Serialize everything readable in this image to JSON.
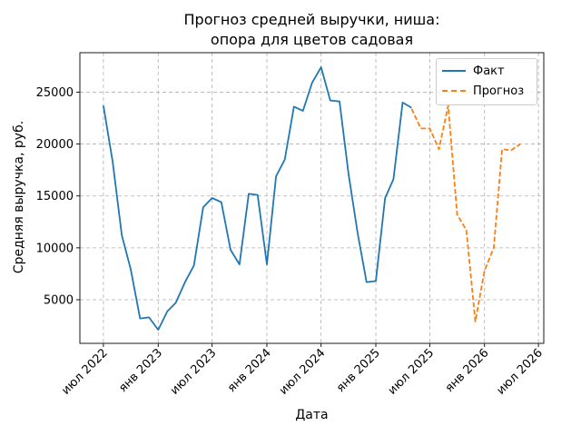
{
  "chart_data": {
    "type": "line",
    "title": "Прогноз средней выручки, ниша:",
    "subtitle": "опора для цветов садовая",
    "xlabel": "Дата",
    "ylabel": "Средняя выручка, руб.",
    "xlim": [
      "2022-04-13",
      "2026-07-19"
    ],
    "ylim": [
      800,
      28800
    ],
    "x_ticks": [
      {
        "date": "2022-07-01",
        "label": "июл 2022"
      },
      {
        "date": "2023-01-01",
        "label": "янв 2023"
      },
      {
        "date": "2023-07-01",
        "label": "июл 2023"
      },
      {
        "date": "2024-01-01",
        "label": "янв 2024"
      },
      {
        "date": "2024-07-01",
        "label": "июл 2024"
      },
      {
        "date": "2025-01-01",
        "label": "янв 2025"
      },
      {
        "date": "2025-07-01",
        "label": "июл 2025"
      },
      {
        "date": "2026-01-01",
        "label": "янв 2026"
      },
      {
        "date": "2026-07-01",
        "label": "июл 2026"
      }
    ],
    "y_ticks": [
      5000,
      10000,
      15000,
      20000,
      25000
    ],
    "y_tick_labels": [
      "5000",
      "10000",
      "15000",
      "20000",
      "25000"
    ],
    "grid": true,
    "legend_position": "upper-right",
    "series": [
      {
        "name": "Факт",
        "color": "#1f77b4",
        "style": "solid",
        "points": [
          [
            "2022-07-01",
            23700
          ],
          [
            "2022-08-01",
            18300
          ],
          [
            "2022-09-01",
            11200
          ],
          [
            "2022-10-01",
            7900
          ],
          [
            "2022-11-01",
            3200
          ],
          [
            "2022-12-01",
            3300
          ],
          [
            "2023-01-01",
            2100
          ],
          [
            "2023-02-01",
            3900
          ],
          [
            "2023-03-01",
            4700
          ],
          [
            "2023-04-01",
            6700
          ],
          [
            "2023-05-01",
            8300
          ],
          [
            "2023-06-01",
            13900
          ],
          [
            "2023-07-01",
            14800
          ],
          [
            "2023-08-01",
            14400
          ],
          [
            "2023-09-01",
            9800
          ],
          [
            "2023-10-01",
            8400
          ],
          [
            "2023-11-01",
            15200
          ],
          [
            "2023-12-01",
            15100
          ],
          [
            "2024-01-01",
            8400
          ],
          [
            "2024-02-01",
            16900
          ],
          [
            "2024-03-01",
            18500
          ],
          [
            "2024-04-01",
            23600
          ],
          [
            "2024-05-01",
            23200
          ],
          [
            "2024-06-01",
            25900
          ],
          [
            "2024-07-01",
            27400
          ],
          [
            "2024-08-01",
            24200
          ],
          [
            "2024-09-01",
            24100
          ],
          [
            "2024-10-01",
            17200
          ],
          [
            "2024-11-01",
            11400
          ],
          [
            "2024-12-01",
            6700
          ],
          [
            "2025-01-01",
            6800
          ],
          [
            "2025-02-01",
            14800
          ],
          [
            "2025-03-01",
            16600
          ],
          [
            "2025-04-01",
            24000
          ],
          [
            "2025-05-01",
            23500
          ]
        ]
      },
      {
        "name": "Прогноз",
        "color": "#ff7f0e",
        "style": "dashed",
        "points": [
          [
            "2025-05-01",
            23400
          ],
          [
            "2025-06-01",
            21500
          ],
          [
            "2025-07-01",
            21500
          ],
          [
            "2025-08-01",
            19500
          ],
          [
            "2025-09-01",
            23700
          ],
          [
            "2025-10-01",
            13200
          ],
          [
            "2025-11-01",
            11700
          ],
          [
            "2025-12-01",
            2900
          ],
          [
            "2026-01-01",
            7800
          ],
          [
            "2026-02-01",
            10000
          ],
          [
            "2026-03-01",
            19500
          ],
          [
            "2026-04-01",
            19400
          ],
          [
            "2026-05-01",
            20000
          ]
        ]
      }
    ]
  }
}
